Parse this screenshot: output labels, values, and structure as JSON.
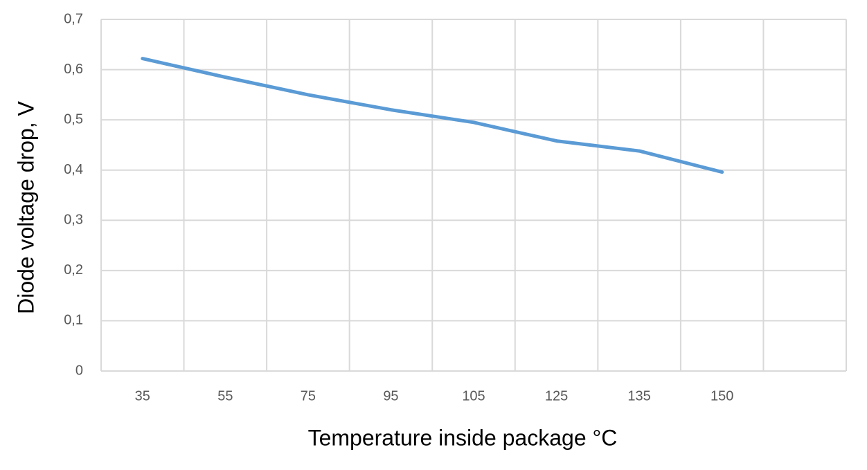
{
  "chart_data": {
    "type": "line",
    "x_label": "Temperature inside package °C",
    "y_label": "Diode voltage drop, V",
    "categories": [
      "35",
      "55",
      "75",
      "95",
      "105",
      "125",
      "135",
      "150",
      null
    ],
    "series": [
      {
        "color": "#5b9bd5",
        "values": [
          0.622,
          0.585,
          0.55,
          0.52,
          0.495,
          0.458,
          0.438,
          0.396,
          null
        ]
      }
    ],
    "ylim": [
      0,
      0.7
    ],
    "yticks": [
      0,
      {
        "value": 0.1,
        "label": "0,1"
      },
      {
        "value": 0.2,
        "label": "0,2"
      },
      {
        "value": 0.3,
        "label": "0,3"
      },
      {
        "value": 0.4,
        "label": "0,4"
      },
      {
        "value": 0.5,
        "label": "0,5"
      },
      {
        "value": 0.6,
        "label": "0,6"
      },
      {
        "value": 0.7,
        "label": "0,7"
      }
    ],
    "grid": true
  }
}
